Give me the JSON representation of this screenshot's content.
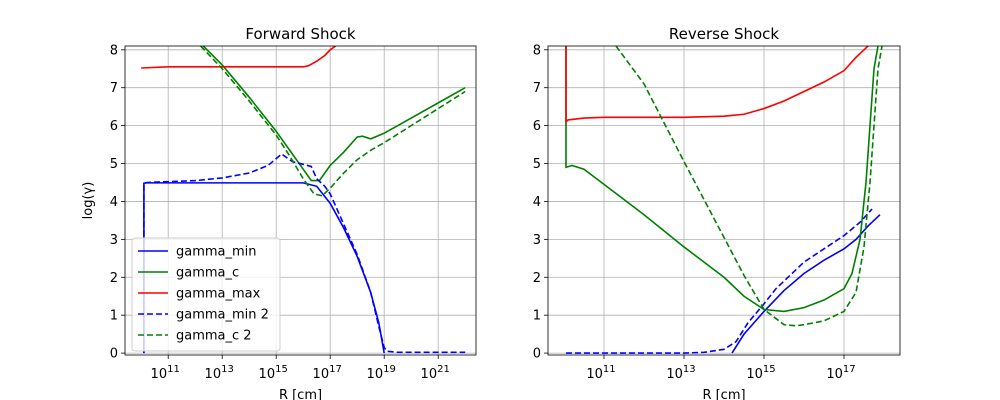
{
  "chart_data": [
    {
      "type": "line",
      "title": "Forward Shock",
      "xlabel": "R [cm]",
      "ylabel": "log(γ)",
      "xscale": "log",
      "xlim_log10": [
        9.4,
        22.4
      ],
      "ylim": [
        -0.05,
        8.1
      ],
      "xticks": [
        {
          "exp": 11,
          "label": "10"
        },
        {
          "exp": 13,
          "label": "10"
        },
        {
          "exp": 15,
          "label": "10"
        },
        {
          "exp": 17,
          "label": "10"
        },
        {
          "exp": 19,
          "label": "10"
        },
        {
          "exp": 21,
          "label": "10"
        }
      ],
      "yticks": [
        0,
        1,
        2,
        3,
        4,
        5,
        6,
        7,
        8
      ],
      "grid": true,
      "legend": "lower-left",
      "series": [
        {
          "name": "gamma_min",
          "color": "#0000ff",
          "dash": "solid",
          "x": [
            10.1,
            10.1,
            10.2,
            12,
            14,
            15,
            16,
            16.5,
            17,
            17.5,
            18,
            18.5,
            18.8,
            19.0
          ],
          "y": [
            0.0,
            4.48,
            4.49,
            4.49,
            4.49,
            4.49,
            4.49,
            4.4,
            3.95,
            3.3,
            2.55,
            1.6,
            0.8,
            0.0
          ]
        },
        {
          "name": "gamma_c",
          "color": "#008000",
          "dash": "solid",
          "x": [
            12.3,
            13,
            14,
            15,
            15.5,
            16,
            16.3,
            16.6,
            17,
            17.5,
            18,
            18.2,
            18.5,
            19,
            20,
            21,
            22
          ],
          "y": [
            8.1,
            7.6,
            6.75,
            5.85,
            5.35,
            4.85,
            4.55,
            4.55,
            4.95,
            5.3,
            5.7,
            5.72,
            5.65,
            5.8,
            6.2,
            6.6,
            7.0
          ]
        },
        {
          "name": "gamma_max",
          "color": "#ff0000",
          "dash": "solid",
          "x": [
            10.0,
            11,
            12,
            13,
            14,
            15,
            16,
            16.2,
            16.5,
            16.8,
            17.0,
            17.2
          ],
          "y": [
            7.52,
            7.55,
            7.55,
            7.55,
            7.55,
            7.55,
            7.55,
            7.58,
            7.7,
            7.85,
            8.0,
            8.1
          ]
        },
        {
          "name": "gamma_min 2",
          "color": "#0000ff",
          "dash": "dashed",
          "x": [
            10.1,
            10.1,
            10.2,
            12,
            13,
            14,
            14.7,
            15.2,
            15.6,
            16,
            16.3,
            16.5,
            16.8,
            17.0,
            17.5,
            18,
            18.5,
            18.8,
            19.0,
            19.1,
            19.5,
            20,
            21,
            22
          ],
          "y": [
            0.0,
            4.48,
            4.5,
            4.55,
            4.62,
            4.75,
            4.95,
            5.25,
            5.05,
            4.98,
            4.92,
            4.6,
            4.4,
            4.2,
            3.4,
            2.6,
            1.6,
            0.7,
            0.15,
            0.05,
            0.02,
            0.02,
            0.02,
            0.02
          ]
        },
        {
          "name": "gamma_c 2",
          "color": "#008000",
          "dash": "dashed",
          "x": [
            12.2,
            13,
            14,
            15,
            15.5,
            16,
            16.4,
            16.7,
            17,
            17.5,
            18,
            18.5,
            19,
            20,
            21,
            22
          ],
          "y": [
            8.1,
            7.5,
            6.65,
            5.75,
            5.2,
            4.6,
            4.2,
            4.15,
            4.35,
            4.75,
            5.1,
            5.35,
            5.55,
            6.0,
            6.45,
            6.9
          ]
        }
      ]
    },
    {
      "type": "line",
      "title": "Reverse Shock",
      "xlabel": "R [cm]",
      "ylabel": "",
      "xscale": "log",
      "xlim_log10": [
        9.6,
        18.4
      ],
      "ylim": [
        -0.05,
        8.1
      ],
      "xticks": [
        {
          "exp": 11,
          "label": "10"
        },
        {
          "exp": 13,
          "label": "10"
        },
        {
          "exp": 15,
          "label": "10"
        },
        {
          "exp": 17,
          "label": "10"
        }
      ],
      "yticks": [
        0,
        1,
        2,
        3,
        4,
        5,
        6,
        7,
        8
      ],
      "grid": true,
      "legend": "",
      "series": [
        {
          "name": "",
          "color": "#0000ff",
          "dash": "solid",
          "x": [
            14.2,
            14.5,
            15,
            15.5,
            16,
            16.5,
            17,
            17.3,
            17.6,
            17.9
          ],
          "y": [
            0.0,
            0.5,
            1.1,
            1.65,
            2.1,
            2.45,
            2.75,
            3.0,
            3.35,
            3.65
          ]
        },
        {
          "name": "",
          "color": "#008000",
          "dash": "solid",
          "x": [
            10.05,
            10.05,
            10.2,
            10.5,
            11,
            12,
            13,
            14,
            14.5,
            15,
            15.5,
            16,
            16.5,
            17,
            17.2,
            17.4,
            17.55,
            17.65,
            17.75,
            17.85
          ],
          "y": [
            8.1,
            4.9,
            4.95,
            4.85,
            4.45,
            3.65,
            2.8,
            2.0,
            1.5,
            1.15,
            1.1,
            1.2,
            1.4,
            1.7,
            2.1,
            3.0,
            4.5,
            6.0,
            7.5,
            8.1
          ]
        },
        {
          "name": "",
          "color": "#ff0000",
          "dash": "solid",
          "x": [
            10.05,
            10.05,
            10.1,
            10.5,
            11,
            12,
            13,
            14,
            14.5,
            15,
            15.5,
            16,
            16.5,
            17,
            17.3,
            17.5,
            17.6
          ],
          "y": [
            8.1,
            6.1,
            6.15,
            6.2,
            6.22,
            6.22,
            6.22,
            6.25,
            6.3,
            6.45,
            6.65,
            6.9,
            7.15,
            7.45,
            7.8,
            8.0,
            8.1
          ]
        },
        {
          "name": "",
          "color": "#0000ff",
          "dash": "dashed",
          "x": [
            10.05,
            11,
            12,
            13,
            13.5,
            14,
            14.3,
            14.6,
            15,
            15.3,
            15.6,
            16,
            16.5,
            17,
            17.4,
            17.7
          ],
          "y": [
            0.0,
            0.0,
            0.0,
            0.0,
            0.02,
            0.1,
            0.3,
            0.8,
            1.3,
            1.7,
            2.0,
            2.4,
            2.75,
            3.1,
            3.45,
            3.8
          ]
        },
        {
          "name": "",
          "color": "#008000",
          "dash": "dashed",
          "x": [
            11.3,
            12,
            13,
            14,
            14.5,
            15,
            15.5,
            15.8,
            16,
            16.5,
            17,
            17.3,
            17.5,
            17.65,
            17.75,
            17.85,
            17.95
          ],
          "y": [
            8.1,
            7.1,
            5.05,
            3.05,
            2.05,
            1.15,
            0.75,
            0.72,
            0.75,
            0.85,
            1.1,
            1.6,
            2.8,
            4.5,
            6.0,
            7.5,
            8.1
          ]
        }
      ]
    }
  ]
}
